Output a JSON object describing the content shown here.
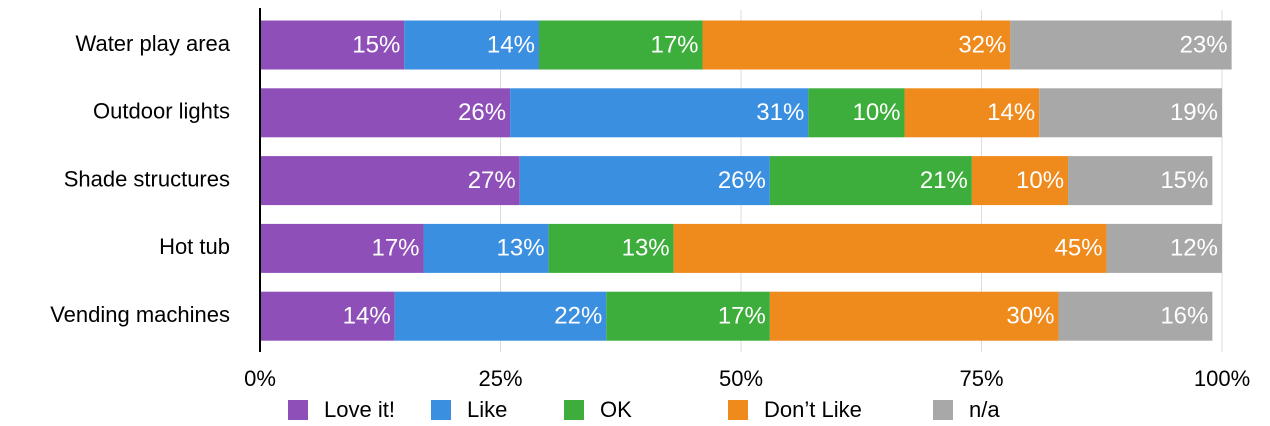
{
  "chart_data": {
    "type": "stacked-bar-horizontal",
    "categories": [
      "Water play area",
      "Outdoor lights",
      "Shade structures",
      "Hot tub",
      "Vending machines"
    ],
    "series": [
      {
        "name": "Love it!",
        "color": "#8e50b8",
        "values": [
          15,
          26,
          27,
          17,
          14
        ],
        "value_labels": [
          "15%",
          "26%",
          "27%",
          "17%",
          "14%"
        ]
      },
      {
        "name": "Like",
        "color": "#3b8fe0",
        "values": [
          14,
          31,
          26,
          13,
          22
        ],
        "value_labels": [
          "14%",
          "31%",
          "26%",
          "13%",
          "22%"
        ]
      },
      {
        "name": "OK",
        "color": "#3dae3b",
        "values": [
          17,
          10,
          21,
          13,
          17
        ],
        "value_labels": [
          "17%",
          "10%",
          "21%",
          "13%",
          "17%"
        ]
      },
      {
        "name": "Don’t Like",
        "color": "#ef8a1d",
        "values": [
          32,
          14,
          10,
          45,
          30
        ],
        "value_labels": [
          "32%",
          "14%",
          "10%",
          "45%",
          "30%"
        ]
      },
      {
        "name": "n/a",
        "color": "#a8a8a8",
        "values": [
          23,
          19,
          15,
          12,
          16
        ],
        "value_labels": [
          "23%",
          "19%",
          "15%",
          "12%",
          "16%"
        ]
      }
    ],
    "xlim": [
      0,
      100
    ],
    "xticks": [
      {
        "value": 0,
        "label": "0%"
      },
      {
        "value": 25,
        "label": "25%"
      },
      {
        "value": 50,
        "label": "50%"
      },
      {
        "value": 75,
        "label": "75%"
      },
      {
        "value": 100,
        "label": "100%"
      }
    ],
    "grid": true,
    "legend": "bottom"
  }
}
